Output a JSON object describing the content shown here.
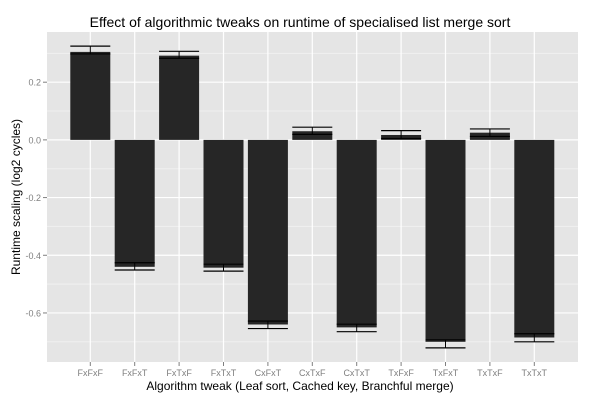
{
  "chart_data": {
    "type": "bar",
    "title": "Effect of algorithmic tweaks on runtime of specialised list merge sort",
    "xlabel": "Algorithm tweak (Leaf sort, Cached key, Branchful merge)",
    "ylabel": "Runtime scaling (log2 cycles)",
    "ylim": [
      -0.77,
      0.374
    ],
    "yticks": [
      0.2,
      0.0,
      -0.2,
      -0.4,
      -0.6
    ],
    "ytick_labels": [
      "0.2",
      "0.0",
      "-0.2",
      "-0.4",
      "-0.6"
    ],
    "grid": true,
    "categories": [
      "FxFxF",
      "FxFxT",
      "FxTxF",
      "FxTxT",
      "CxFxT",
      "CxTxF",
      "CxTxT",
      "TxFxF",
      "TxFxT",
      "TxTxF",
      "TxTxT"
    ],
    "values": [
      0.305,
      -0.44,
      0.292,
      -0.443,
      -0.64,
      0.03,
      -0.65,
      0.017,
      -0.7,
      0.025,
      -0.685
    ],
    "error_low": [
      0.298,
      -0.451,
      0.283,
      -0.455,
      -0.654,
      0.019,
      -0.665,
      0.005,
      -0.721,
      0.012,
      -0.7
    ],
    "error_high": [
      0.325,
      -0.426,
      0.307,
      -0.431,
      -0.628,
      0.044,
      -0.639,
      0.032,
      -0.693,
      0.038,
      -0.672
    ],
    "colors": {
      "bar": "#262626",
      "panel": "#e5e5e5",
      "grid": "#ffffff",
      "minor_grid": "#f0f0f0",
      "error": "#000000"
    }
  }
}
